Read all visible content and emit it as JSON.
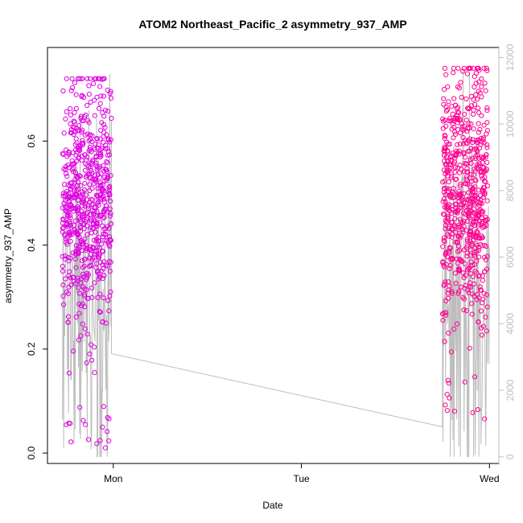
{
  "chart_data": {
    "type": "scatter",
    "title": "ATOM2 Northeast_Pacific_2 asymmetry_937_AMP",
    "xlabel": "Date",
    "ylabel": "asymmetry_937_AMP",
    "x_ticks": [
      {
        "label": "Mon",
        "value": 1.0
      },
      {
        "label": "Tue",
        "value": 2.0
      },
      {
        "label": "Wed",
        "value": 3.0
      }
    ],
    "xlim": [
      0.65,
      3.05
    ],
    "ylim": [
      -0.02,
      0.78
    ],
    "y_ticks": [
      0.0,
      0.2,
      0.4,
      0.6
    ],
    "y_tick_labels": [
      "0.0",
      "0.2",
      "0.4",
      "0.6"
    ],
    "y2lim": [
      -200,
      12300
    ],
    "y2_ticks": [
      0,
      2000,
      4000,
      6000,
      8000,
      10000,
      12000
    ],
    "y2_tick_labels": [
      "0",
      "2000",
      "4000",
      "6000",
      "8000",
      "10000",
      "12000"
    ],
    "grid": false,
    "series": [
      {
        "x_range": [
          0.73,
          0.99
        ],
        "y_range": [
          0.01,
          0.72
        ],
        "y_mean": 0.48,
        "y_sd": 0.12,
        "count": 650,
        "marker": "open-circle",
        "color": "#e000e0"
      },
      {
        "x_range": [
          2.75,
          2.99
        ],
        "y_range": [
          0.06,
          0.74
        ],
        "y_mean": 0.5,
        "y_sd": 0.13,
        "count": 650,
        "marker": "open-circle",
        "color": "#ff0090"
      },
      {
        "axis": "right",
        "type": "line",
        "color": "#bdbdbd",
        "gap": [
          [
            0.99,
            3.1
          ],
          [
            2.75,
            0.9
          ]
        ],
        "first_block": {
          "x_range": [
            0.73,
            0.99
          ],
          "y_range": [
            0,
            11500
          ]
        },
        "second_block": {
          "x_range": [
            2.75,
            3.0
          ],
          "y_range": [
            0,
            11600
          ]
        }
      }
    ]
  }
}
